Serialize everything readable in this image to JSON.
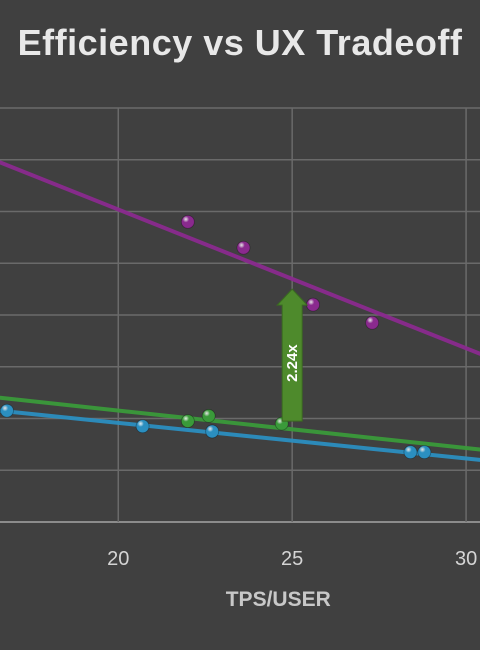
{
  "chart_data": {
    "type": "scatter",
    "title": "Efficiency vs UX Tradeoff",
    "xlabel": "TPS/USER",
    "ylabel": "",
    "x_ticks": [
      20,
      25,
      30
    ],
    "x_tick_labels": [
      "20",
      "25",
      "30"
    ],
    "xlim": [
      16.6,
      30.4
    ],
    "ylim": [
      0,
      8
    ],
    "grid": true,
    "series": [
      {
        "color": "#8a2a8e",
        "points": [
          [
            22.0,
            5.8
          ],
          [
            23.6,
            5.3
          ],
          [
            25.6,
            4.2
          ],
          [
            27.3,
            3.85
          ]
        ],
        "trendline": [
          [
            16.6,
            6.95
          ],
          [
            30.4,
            3.25
          ]
        ]
      },
      {
        "color": "#3a9a3a",
        "points": [
          [
            22.0,
            1.95
          ],
          [
            22.6,
            2.05
          ],
          [
            24.7,
            1.9
          ]
        ],
        "trendline": [
          [
            16.6,
            2.4
          ],
          [
            30.4,
            1.4
          ]
        ]
      },
      {
        "color": "#2b8fc0",
        "points": [
          [
            16.8,
            2.15
          ],
          [
            20.7,
            1.85
          ],
          [
            22.7,
            1.75
          ],
          [
            28.4,
            1.35
          ],
          [
            28.8,
            1.35
          ]
        ],
        "trendline": [
          [
            16.6,
            2.15
          ],
          [
            30.4,
            1.2
          ]
        ]
      }
    ],
    "annotation": {
      "text": "2.24x",
      "x": 25,
      "y_from": 1.95,
      "y_to": 4.5,
      "color": "#4e8a2c"
    }
  }
}
